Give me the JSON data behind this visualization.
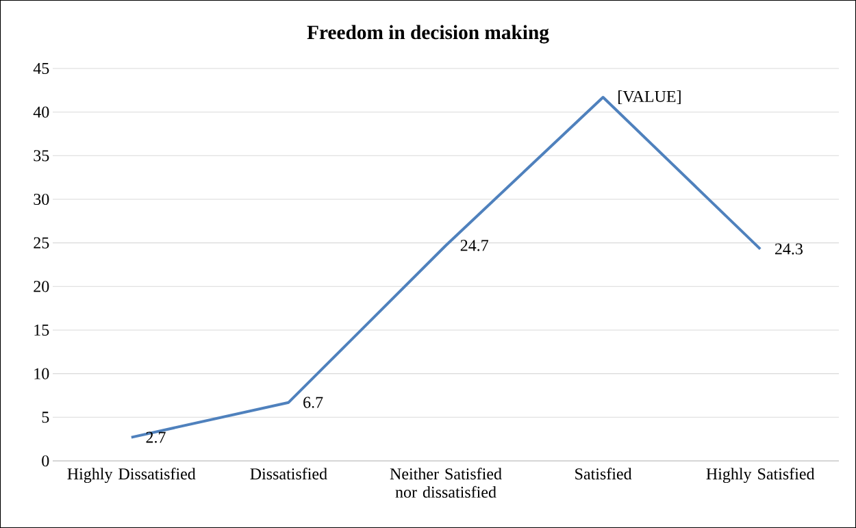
{
  "chart_data": {
    "type": "line",
    "title": "Freedom in decision making",
    "categories": [
      "Highly Dissatisfied",
      "Dissatisfied",
      "Neither Satisfied nor dissatisfied",
      "Satisfied",
      "Highly Satisfied"
    ],
    "values": [
      2.7,
      6.7,
      24.7,
      41.7,
      24.3
    ],
    "value_labels": [
      "2.7",
      "6.7",
      "24.7",
      "[VALUE]",
      "24.3"
    ],
    "color": "#4f81bd",
    "marker": "none",
    "line_style": "solid",
    "grid": "y",
    "ylim": [
      0,
      45
    ],
    "yticks": [
      0,
      5,
      10,
      15,
      20,
      25,
      30,
      35,
      40,
      45
    ]
  }
}
